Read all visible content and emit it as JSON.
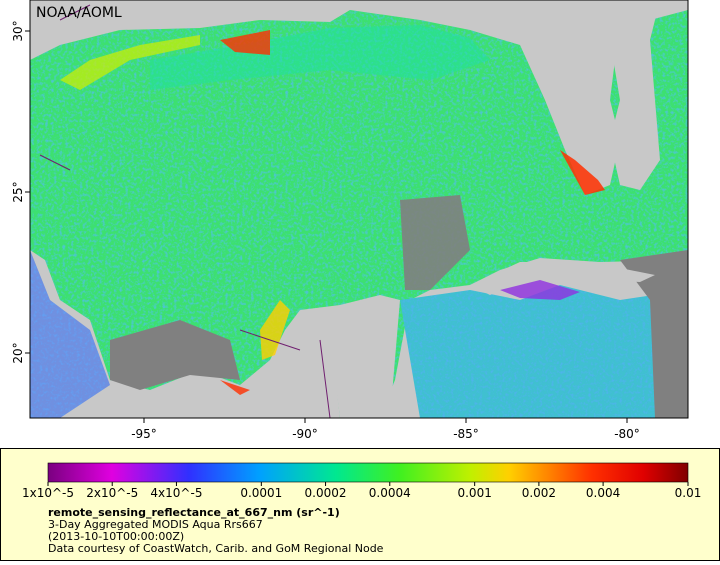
{
  "map": {
    "credit": "NOAA/AOML",
    "lat_ticks": [
      {
        "value": 30,
        "label": "30°"
      },
      {
        "value": 25,
        "label": "25°"
      },
      {
        "value": 20,
        "label": "20°"
      }
    ],
    "lon_ticks": [
      {
        "value": -95,
        "label": "-95°"
      },
      {
        "value": -90,
        "label": "-90°"
      },
      {
        "value": -85,
        "label": "-85°"
      },
      {
        "value": -80,
        "label": "-80°"
      }
    ]
  },
  "colorbar": {
    "ticks": [
      {
        "value": 1e-05,
        "label": "1x10^-5"
      },
      {
        "value": 2e-05,
        "label": "2x10^-5"
      },
      {
        "value": 4e-05,
        "label": "4x10^-5"
      },
      {
        "value": 0.0001,
        "label": "0.0001"
      },
      {
        "value": 0.0002,
        "label": "0.0002"
      },
      {
        "value": 0.0004,
        "label": "0.0004"
      },
      {
        "value": 0.001,
        "label": "0.001"
      },
      {
        "value": 0.002,
        "label": "0.002"
      },
      {
        "value": 0.004,
        "label": "0.004"
      },
      {
        "value": 0.01,
        "label": "0.01"
      }
    ]
  },
  "legend": {
    "title": "remote_sensing_reflectance_at_667_nm (sr^-1)",
    "lines": [
      "3-Day Aggregated MODIS Aqua Rrs667",
      "(2013-10-10T00:00:00Z)",
      "Data courtesy of CoastWatch, Carib. and GoM Regional Node"
    ]
  }
}
